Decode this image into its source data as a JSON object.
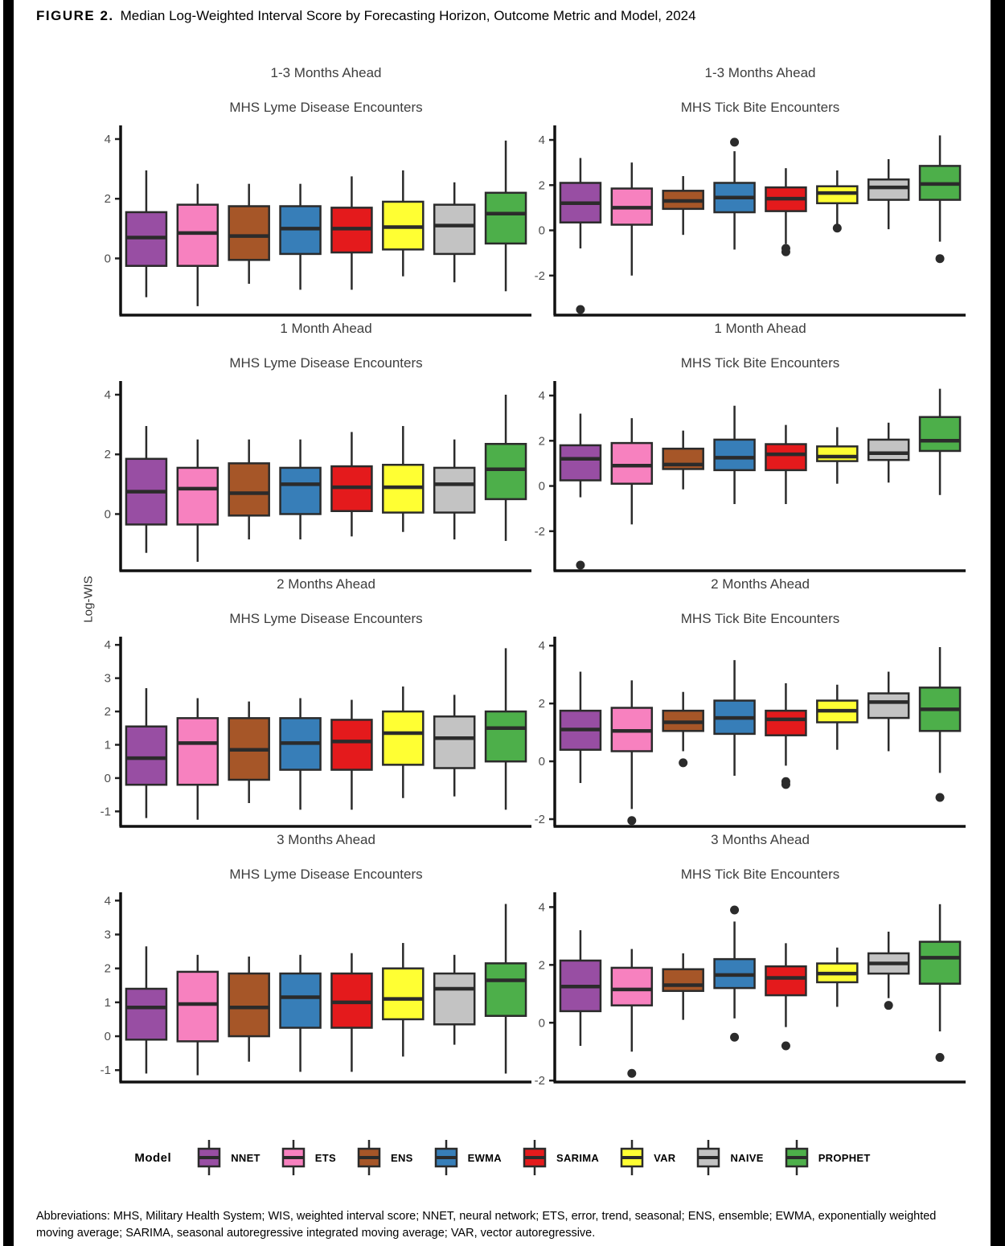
{
  "figure_title": {
    "label": "FIGURE 2.",
    "text": "Median Log-Weighted Interval Score by Forecasting Horizon, Outcome Metric and Model, 2024"
  },
  "ylabel": "Log-WIS",
  "legend": {
    "label": "Model"
  },
  "models": [
    {
      "name": "NNET",
      "color": "#984EA3"
    },
    {
      "name": "ETS",
      "color": "#F781BF"
    },
    {
      "name": "ENS",
      "color": "#A65628"
    },
    {
      "name": "EWMA",
      "color": "#377EB8"
    },
    {
      "name": "SARIMA",
      "color": "#E41A1C"
    },
    {
      "name": "VAR",
      "color": "#FFFF33"
    },
    {
      "name": "NAIVE",
      "color": "#C3C3C3"
    },
    {
      "name": "PROPHET",
      "color": "#4DAF4A"
    }
  ],
  "chart_data": [
    {
      "type": "boxplot",
      "horizon": "1-3 Months Ahead",
      "metric": "MHS Lyme Disease Encounters",
      "ylim": [
        -1.9,
        4.35
      ],
      "yticks": [
        0,
        2,
        4
      ],
      "boxes": [
        {
          "model": "NNET",
          "low": -1.3,
          "q1": -0.25,
          "median": 0.7,
          "q3": 1.55,
          "high": 2.95
        },
        {
          "model": "ETS",
          "low": -1.6,
          "q1": -0.25,
          "median": 0.85,
          "q3": 1.8,
          "high": 2.5
        },
        {
          "model": "ENS",
          "low": -0.85,
          "q1": -0.05,
          "median": 0.75,
          "q3": 1.75,
          "high": 2.5
        },
        {
          "model": "EWMA",
          "low": -1.05,
          "q1": 0.15,
          "median": 1.0,
          "q3": 1.75,
          "high": 2.5
        },
        {
          "model": "SARIMA",
          "low": -1.05,
          "q1": 0.2,
          "median": 1.0,
          "q3": 1.7,
          "high": 2.75
        },
        {
          "model": "VAR",
          "low": -0.6,
          "q1": 0.3,
          "median": 1.05,
          "q3": 1.9,
          "high": 2.95
        },
        {
          "model": "NAIVE",
          "low": -0.8,
          "q1": 0.15,
          "median": 1.1,
          "q3": 1.8,
          "high": 2.55
        },
        {
          "model": "PROPHET",
          "low": -1.1,
          "q1": 0.5,
          "median": 1.5,
          "q3": 2.2,
          "high": 3.95
        }
      ]
    },
    {
      "type": "boxplot",
      "horizon": "1-3 Months Ahead",
      "metric": "MHS Tick Bite Encounters",
      "ylim": [
        -3.75,
        4.5
      ],
      "yticks": [
        -2,
        0,
        2,
        4
      ],
      "boxes": [
        {
          "model": "NNET",
          "low": -0.8,
          "q1": 0.35,
          "median": 1.2,
          "q3": 2.1,
          "high": 3.2,
          "outliers": [
            -3.5
          ]
        },
        {
          "model": "ETS",
          "low": -2.0,
          "q1": 0.25,
          "median": 1.0,
          "q3": 1.85,
          "high": 3.0
        },
        {
          "model": "ENS",
          "low": -0.2,
          "q1": 0.95,
          "median": 1.3,
          "q3": 1.75,
          "high": 2.4
        },
        {
          "model": "EWMA",
          "low": -0.85,
          "q1": 0.8,
          "median": 1.45,
          "q3": 2.1,
          "high": 3.5,
          "outliers": [
            3.9
          ]
        },
        {
          "model": "SARIMA",
          "low": -0.6,
          "q1": 0.85,
          "median": 1.4,
          "q3": 1.9,
          "high": 2.75,
          "outliers": [
            -0.8,
            -0.95
          ]
        },
        {
          "model": "VAR",
          "low": 0.15,
          "q1": 1.2,
          "median": 1.65,
          "q3": 1.95,
          "high": 2.65,
          "outliers": [
            0.1
          ]
        },
        {
          "model": "NAIVE",
          "low": 0.05,
          "q1": 1.35,
          "median": 1.9,
          "q3": 2.25,
          "high": 3.15
        },
        {
          "model": "PROPHET",
          "low": -0.5,
          "q1": 1.35,
          "median": 2.05,
          "q3": 2.85,
          "high": 4.2,
          "outliers": [
            -1.25
          ]
        }
      ]
    },
    {
      "type": "boxplot",
      "horizon": "1 Month Ahead",
      "metric": "MHS Lyme Disease Encounters",
      "ylim": [
        -1.9,
        4.35
      ],
      "yticks": [
        0,
        2,
        4
      ],
      "boxes": [
        {
          "model": "NNET",
          "low": -1.3,
          "q1": -0.35,
          "median": 0.75,
          "q3": 1.85,
          "high": 2.95
        },
        {
          "model": "ETS",
          "low": -1.6,
          "q1": -0.35,
          "median": 0.85,
          "q3": 1.55,
          "high": 2.5
        },
        {
          "model": "ENS",
          "low": -0.85,
          "q1": -0.05,
          "median": 0.7,
          "q3": 1.7,
          "high": 2.5
        },
        {
          "model": "EWMA",
          "low": -0.85,
          "q1": 0.0,
          "median": 1.0,
          "q3": 1.55,
          "high": 2.5
        },
        {
          "model": "SARIMA",
          "low": -0.75,
          "q1": 0.1,
          "median": 0.9,
          "q3": 1.6,
          "high": 2.75
        },
        {
          "model": "VAR",
          "low": -0.6,
          "q1": 0.05,
          "median": 0.9,
          "q3": 1.65,
          "high": 2.95
        },
        {
          "model": "NAIVE",
          "low": -0.85,
          "q1": 0.05,
          "median": 1.0,
          "q3": 1.55,
          "high": 2.5
        },
        {
          "model": "PROPHET",
          "low": -0.9,
          "q1": 0.5,
          "median": 1.5,
          "q3": 2.35,
          "high": 4.0
        }
      ]
    },
    {
      "type": "boxplot",
      "horizon": "1 Month Ahead",
      "metric": "MHS Tick Bite Encounters",
      "ylim": [
        -3.75,
        4.5
      ],
      "yticks": [
        -2,
        0,
        2,
        4
      ],
      "boxes": [
        {
          "model": "NNET",
          "low": -0.5,
          "q1": 0.25,
          "median": 1.2,
          "q3": 1.8,
          "high": 3.2,
          "outliers": [
            -3.5
          ]
        },
        {
          "model": "ETS",
          "low": -1.7,
          "q1": 0.1,
          "median": 0.9,
          "q3": 1.9,
          "high": 3.0
        },
        {
          "model": "ENS",
          "low": -0.15,
          "q1": 0.75,
          "median": 0.95,
          "q3": 1.65,
          "high": 2.45
        },
        {
          "model": "EWMA",
          "low": -0.8,
          "q1": 0.7,
          "median": 1.25,
          "q3": 2.05,
          "high": 3.55
        },
        {
          "model": "SARIMA",
          "low": -0.8,
          "q1": 0.7,
          "median": 1.4,
          "q3": 1.85,
          "high": 2.7
        },
        {
          "model": "VAR",
          "low": 0.1,
          "q1": 1.1,
          "median": 1.3,
          "q3": 1.75,
          "high": 2.6
        },
        {
          "model": "NAIVE",
          "low": 0.15,
          "q1": 1.15,
          "median": 1.45,
          "q3": 2.05,
          "high": 2.8
        },
        {
          "model": "PROPHET",
          "low": -0.4,
          "q1": 1.55,
          "median": 2.0,
          "q3": 3.05,
          "high": 4.3
        }
      ]
    },
    {
      "type": "boxplot",
      "horizon": "2 Months Ahead",
      "metric": "MHS Lyme Disease Encounters",
      "ylim": [
        -1.45,
        4.15
      ],
      "yticks": [
        -1,
        0,
        1,
        2,
        3,
        4
      ],
      "boxes": [
        {
          "model": "NNET",
          "low": -1.2,
          "q1": -0.2,
          "median": 0.6,
          "q3": 1.55,
          "high": 2.7
        },
        {
          "model": "ETS",
          "low": -1.25,
          "q1": -0.2,
          "median": 1.05,
          "q3": 1.8,
          "high": 2.4
        },
        {
          "model": "ENS",
          "low": -0.75,
          "q1": -0.05,
          "median": 0.85,
          "q3": 1.8,
          "high": 2.3
        },
        {
          "model": "EWMA",
          "low": -0.95,
          "q1": 0.25,
          "median": 1.05,
          "q3": 1.8,
          "high": 2.4
        },
        {
          "model": "SARIMA",
          "low": -0.95,
          "q1": 0.25,
          "median": 1.1,
          "q3": 1.75,
          "high": 2.35
        },
        {
          "model": "VAR",
          "low": -0.6,
          "q1": 0.4,
          "median": 1.35,
          "q3": 2.0,
          "high": 2.75
        },
        {
          "model": "NAIVE",
          "low": -0.55,
          "q1": 0.3,
          "median": 1.2,
          "q3": 1.85,
          "high": 2.5
        },
        {
          "model": "PROPHET",
          "low": -0.95,
          "q1": 0.5,
          "median": 1.5,
          "q3": 2.0,
          "high": 3.9
        }
      ]
    },
    {
      "type": "boxplot",
      "horizon": "2 Months Ahead",
      "metric": "MHS Tick Bite Encounters",
      "ylim": [
        -2.25,
        4.2
      ],
      "yticks": [
        -2,
        0,
        2,
        4
      ],
      "boxes": [
        {
          "model": "NNET",
          "low": -0.75,
          "q1": 0.4,
          "median": 1.1,
          "q3": 1.75,
          "high": 3.1
        },
        {
          "model": "ETS",
          "low": -1.65,
          "q1": 0.35,
          "median": 1.05,
          "q3": 1.85,
          "high": 2.8,
          "outliers": [
            -2.05
          ]
        },
        {
          "model": "ENS",
          "low": 0.35,
          "q1": 1.05,
          "median": 1.35,
          "q3": 1.75,
          "high": 2.4,
          "outliers": [
            -0.05
          ]
        },
        {
          "model": "EWMA",
          "low": -0.5,
          "q1": 0.95,
          "median": 1.5,
          "q3": 2.1,
          "high": 3.5
        },
        {
          "model": "SARIMA",
          "low": -0.15,
          "q1": 0.9,
          "median": 1.45,
          "q3": 1.75,
          "high": 2.7,
          "outliers": [
            -0.7,
            -0.8
          ]
        },
        {
          "model": "VAR",
          "low": 0.4,
          "q1": 1.35,
          "median": 1.75,
          "q3": 2.1,
          "high": 2.65
        },
        {
          "model": "NAIVE",
          "low": 0.35,
          "q1": 1.5,
          "median": 2.05,
          "q3": 2.35,
          "high": 3.1
        },
        {
          "model": "PROPHET",
          "low": -0.4,
          "q1": 1.05,
          "median": 1.8,
          "q3": 2.55,
          "high": 3.95,
          "outliers": [
            -1.25
          ]
        }
      ]
    },
    {
      "type": "boxplot",
      "horizon": "3 Months Ahead",
      "metric": "MHS Lyme Disease Encounters",
      "ylim": [
        -1.35,
        4.15
      ],
      "yticks": [
        -1,
        0,
        1,
        2,
        3,
        4
      ],
      "boxes": [
        {
          "model": "NNET",
          "low": -1.1,
          "q1": -0.1,
          "median": 0.85,
          "q3": 1.4,
          "high": 2.65
        },
        {
          "model": "ETS",
          "low": -1.15,
          "q1": -0.15,
          "median": 0.95,
          "q3": 1.9,
          "high": 2.4
        },
        {
          "model": "ENS",
          "low": -0.75,
          "q1": 0.0,
          "median": 0.85,
          "q3": 1.85,
          "high": 2.35
        },
        {
          "model": "EWMA",
          "low": -1.05,
          "q1": 0.25,
          "median": 1.15,
          "q3": 1.85,
          "high": 2.4
        },
        {
          "model": "SARIMA",
          "low": -1.05,
          "q1": 0.25,
          "median": 1.0,
          "q3": 1.85,
          "high": 2.45
        },
        {
          "model": "VAR",
          "low": -0.6,
          "q1": 0.5,
          "median": 1.1,
          "q3": 2.0,
          "high": 2.75
        },
        {
          "model": "NAIVE",
          "low": -0.25,
          "q1": 0.35,
          "median": 1.4,
          "q3": 1.85,
          "high": 2.4
        },
        {
          "model": "PROPHET",
          "low": -1.1,
          "q1": 0.6,
          "median": 1.65,
          "q3": 2.15,
          "high": 3.9
        }
      ]
    },
    {
      "type": "boxplot",
      "horizon": "3 Months Ahead",
      "metric": "MHS Tick Bite Encounters",
      "ylim": [
        -2.05,
        4.4
      ],
      "yticks": [
        -2,
        0,
        2,
        4
      ],
      "boxes": [
        {
          "model": "NNET",
          "low": -0.8,
          "q1": 0.4,
          "median": 1.25,
          "q3": 2.15,
          "high": 3.2
        },
        {
          "model": "ETS",
          "low": -1.0,
          "q1": 0.6,
          "median": 1.15,
          "q3": 1.9,
          "high": 2.55,
          "outliers": [
            -1.75
          ]
        },
        {
          "model": "ENS",
          "low": 0.1,
          "q1": 1.1,
          "median": 1.3,
          "q3": 1.85,
          "high": 2.4
        },
        {
          "model": "EWMA",
          "low": 0.15,
          "q1": 1.2,
          "median": 1.65,
          "q3": 2.2,
          "high": 3.5,
          "outliers": [
            3.9,
            -0.5
          ]
        },
        {
          "model": "SARIMA",
          "low": -0.15,
          "q1": 0.95,
          "median": 1.55,
          "q3": 1.95,
          "high": 2.75,
          "outliers": [
            -0.8
          ]
        },
        {
          "model": "VAR",
          "low": 0.55,
          "q1": 1.4,
          "median": 1.7,
          "q3": 2.05,
          "high": 2.6
        },
        {
          "model": "NAIVE",
          "low": 0.85,
          "q1": 1.7,
          "median": 2.05,
          "q3": 2.4,
          "high": 3.15,
          "outliers": [
            0.6
          ]
        },
        {
          "model": "PROPHET",
          "low": -0.3,
          "q1": 1.35,
          "median": 2.25,
          "q3": 2.8,
          "high": 4.1,
          "outliers": [
            -1.2
          ]
        }
      ]
    }
  ],
  "footnote": "Abbreviations: MHS, Military Health System; WIS, weighted interval score; NNET, neural network; ETS, error, trend, seasonal; ENS, ensemble; EWMA, exponentially weighted moving average; SARIMA, seasonal autoregressive integrated moving average; VAR, vector autoregressive."
}
